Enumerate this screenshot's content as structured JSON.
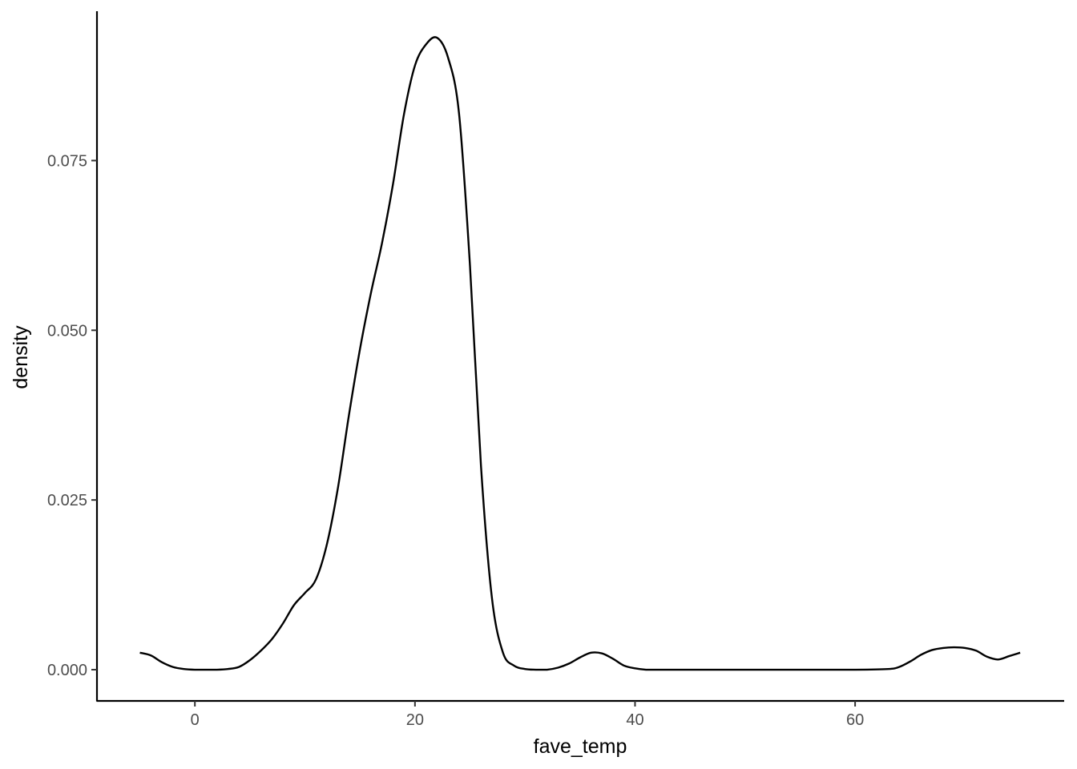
{
  "chart_data": {
    "type": "line",
    "title": "",
    "xlabel": "fave_temp",
    "ylabel": "density",
    "xlim": [
      -8.9,
      79
    ],
    "ylim": [
      -0.0046,
      0.097
    ],
    "x_ticks": [
      0,
      20,
      40,
      60
    ],
    "x_tick_labels": [
      "0",
      "20",
      "40",
      "60"
    ],
    "y_ticks": [
      0.0,
      0.025,
      0.05,
      0.075
    ],
    "y_tick_labels": [
      "0.000",
      "0.025",
      "0.050",
      "0.075"
    ],
    "grid": false,
    "legend": "none",
    "line_color": "#000000",
    "series": [
      {
        "x": [
          -5,
          -4,
          -3,
          -2,
          -1,
          0,
          1,
          2,
          3,
          4,
          5,
          6,
          7,
          8,
          9,
          10,
          11,
          12,
          13,
          14,
          15,
          16,
          17,
          18,
          19,
          20,
          21,
          22,
          23,
          24,
          25,
          26,
          27,
          28,
          29,
          30,
          31,
          32,
          33,
          34,
          35,
          36,
          37,
          38,
          39,
          40,
          41,
          42,
          45,
          50,
          55,
          60,
          63,
          64,
          65,
          66,
          67,
          68,
          69,
          70,
          71,
          72,
          73,
          74,
          75
        ],
        "y": [
          0.0025,
          0.0021,
          0.0011,
          0.0004,
          0.0001,
          0.0,
          0.0,
          0.0,
          0.0001,
          0.0004,
          0.0014,
          0.0028,
          0.0045,
          0.0068,
          0.0095,
          0.0113,
          0.0133,
          0.0185,
          0.0268,
          0.0375,
          0.0472,
          0.0555,
          0.0628,
          0.0715,
          0.0818,
          0.089,
          0.0921,
          0.0931,
          0.0902,
          0.082,
          0.0595,
          0.03,
          0.0105,
          0.0025,
          0.0006,
          0.0001,
          0.0,
          0.0,
          0.0003,
          0.0009,
          0.0018,
          0.0025,
          0.0024,
          0.0016,
          0.0006,
          0.0002,
          0.0,
          0.0,
          0.0,
          0.0,
          0.0,
          0.0,
          0.0001,
          0.0004,
          0.0012,
          0.0022,
          0.0029,
          0.0032,
          0.0033,
          0.0032,
          0.0028,
          0.0019,
          0.0015,
          0.002,
          0.0025
        ]
      }
    ]
  }
}
